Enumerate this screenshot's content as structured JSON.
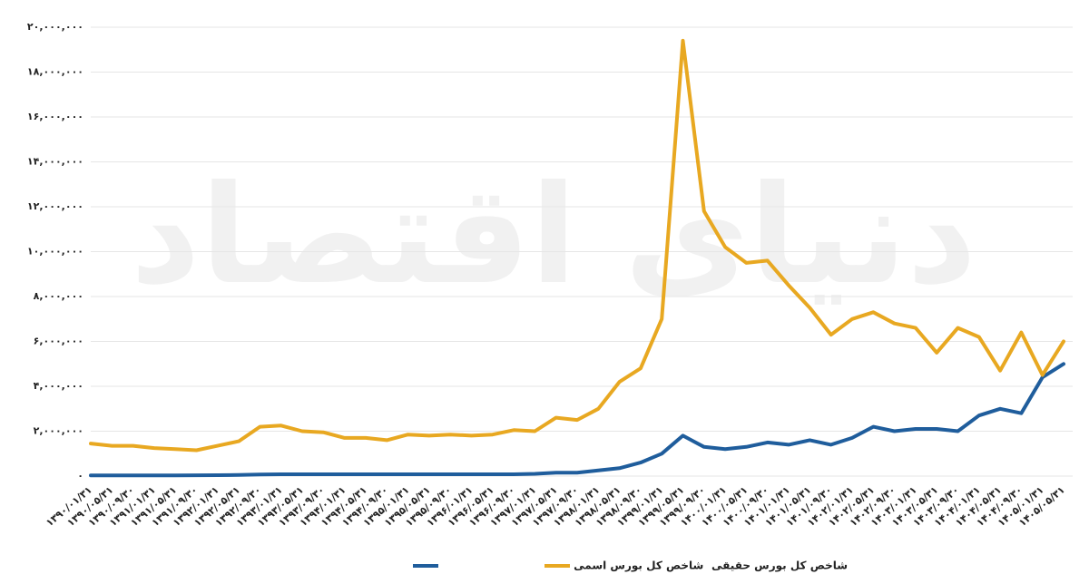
{
  "chart_data": {
    "type": "line",
    "watermark": "دنیای اقتصاد",
    "categories": [
      "۱۳۹۰/۰۱/۳۱",
      "۱۳۹۰/۰۵/۳۱",
      "۱۳۹۰/۰۹/۳۰",
      "۱۳۹۱/۰۱/۳۱",
      "۱۳۹۱/۰۵/۳۱",
      "۱۳۹۱/۰۹/۳۰",
      "۱۳۹۲/۰۱/۳۱",
      "۱۳۹۲/۰۵/۳۱",
      "۱۳۹۲/۰۹/۳۰",
      "۱۳۹۳/۰۱/۳۱",
      "۱۳۹۳/۰۵/۳۱",
      "۱۳۹۳/۰۹/۳۰",
      "۱۳۹۴/۰۱/۳۱",
      "۱۳۹۴/۰۵/۳۱",
      "۱۳۹۴/۰۹/۳۰",
      "۱۳۹۵/۰۱/۳۱",
      "۱۳۹۵/۰۵/۳۱",
      "۱۳۹۵/۰۹/۳۰",
      "۱۳۹۶/۰۱/۳۱",
      "۱۳۹۶/۰۵/۳۱",
      "۱۳۹۶/۰۹/۳۰",
      "۱۳۹۷/۰۱/۳۱",
      "۱۳۹۷/۰۵/۳۱",
      "۱۳۹۷/۰۹/۳۰",
      "۱۳۹۸/۰۱/۳۱",
      "۱۳۹۸/۰۵/۳۱",
      "۱۳۹۸/۰۹/۳۰",
      "۱۳۹۹/۰۱/۳۱",
      "۱۳۹۹/۰۵/۳۱",
      "۱۳۹۹/۰۹/۳۰",
      "۱۴۰۰/۰۱/۳۱",
      "۱۴۰۰/۰۵/۳۱",
      "۱۴۰۰/۰۹/۳۰",
      "۱۴۰۱/۰۱/۳۱",
      "۱۴۰۱/۰۵/۳۱",
      "۱۴۰۱/۰۹/۳۰",
      "۱۴۰۲/۰۱/۳۱",
      "۱۴۰۲/۰۵/۳۱",
      "۱۴۰۲/۰۹/۳۰",
      "۱۴۰۳/۰۱/۳۱",
      "۱۴۰۳/۰۵/۳۱",
      "۱۴۰۳/۰۹/۳۰",
      "۱۴۰۴/۰۱/۳۱",
      "۱۴۰۴/۰۵/۳۱",
      "۱۴۰۴/۰۹/۳۰",
      "۱۴۰۵/۰۱/۳۱",
      "۱۴۰۵/۰۵/۳۱"
    ],
    "series": [
      {
        "name": "شاخص کل بورس اسمی",
        "color": "#1f5d9c",
        "values": [
          30000,
          30000,
          30000,
          30000,
          30000,
          35000,
          40000,
          50000,
          70000,
          80000,
          80000,
          80000,
          80000,
          80000,
          80000,
          80000,
          80000,
          80000,
          80000,
          80000,
          80000,
          100000,
          150000,
          150000,
          250000,
          350000,
          600000,
          1000000,
          1800000,
          1300000,
          1200000,
          1300000,
          1500000,
          1400000,
          1600000,
          1400000,
          1700000,
          2200000,
          2000000,
          2100000,
          2100000,
          2000000,
          2700000,
          3000000,
          2800000,
          4400000,
          5000000
        ]
      },
      {
        "name": "شاخص کل بورس حقیقی",
        "color": "#e8a821",
        "values": [
          1450000,
          1350000,
          1350000,
          1250000,
          1200000,
          1150000,
          1350000,
          1550000,
          2200000,
          2250000,
          2000000,
          1950000,
          1700000,
          1700000,
          1600000,
          1850000,
          1800000,
          1850000,
          1800000,
          1850000,
          2050000,
          2000000,
          2600000,
          2500000,
          3000000,
          4200000,
          4800000,
          7000000,
          19400000,
          11800000,
          10200000,
          9500000,
          9600000,
          8500000,
          7500000,
          6300000,
          7000000,
          7300000,
          6800000,
          6600000,
          5500000,
          6600000,
          6200000,
          4700000,
          6400000,
          4500000,
          6000000
        ]
      }
    ],
    "ylim": [
      0,
      20000000
    ],
    "yticks": [
      {
        "value": 0,
        "label": "۰"
      },
      {
        "value": 2000000,
        "label": "۲,۰۰۰,۰۰۰"
      },
      {
        "value": 4000000,
        "label": "۴,۰۰۰,۰۰۰"
      },
      {
        "value": 6000000,
        "label": "۶,۰۰۰,۰۰۰"
      },
      {
        "value": 8000000,
        "label": "۸,۰۰۰,۰۰۰"
      },
      {
        "value": 10000000,
        "label": "۱۰,۰۰۰,۰۰۰"
      },
      {
        "value": 12000000,
        "label": "۱۲,۰۰۰,۰۰۰"
      },
      {
        "value": 14000000,
        "label": "۱۴,۰۰۰,۰۰۰"
      },
      {
        "value": 16000000,
        "label": "۱۶,۰۰۰,۰۰۰"
      },
      {
        "value": 18000000,
        "label": "۱۸,۰۰۰,۰۰۰"
      },
      {
        "value": 20000000,
        "label": "۲۰,۰۰۰,۰۰۰"
      }
    ],
    "grid": true
  }
}
